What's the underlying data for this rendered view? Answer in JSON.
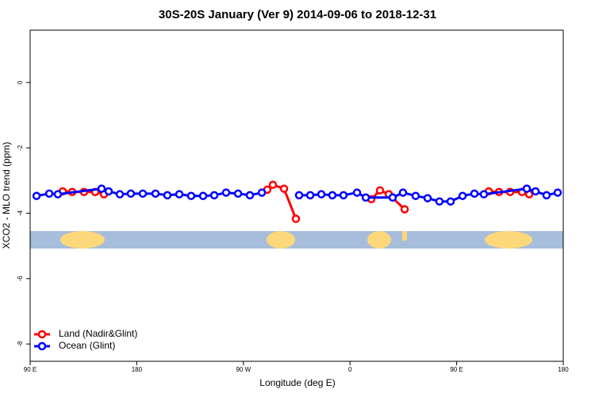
{
  "chart_data": {
    "type": "line",
    "title": "30S-20S January (Ver 9)   2014-09-06 to 2018-12-31",
    "x_label": "Longitude (deg E)",
    "y_label": "XCO2 - MLO trend (ppm)",
    "xlim": [
      90,
      540
    ],
    "ylim": [
      -8.53,
      1.6
    ],
    "xticks": [
      {
        "value": 90,
        "label": "90 E"
      },
      180,
      {
        "value": 270,
        "label": "90 W"
      },
      {
        "value": 360,
        "label": "0"
      },
      {
        "value": 450,
        "label": "90 E"
      },
      {
        "value": 540,
        "label": "180"
      }
    ],
    "yticks": [
      0,
      -2,
      -4,
      -6,
      -8
    ],
    "legend": "bottomleft",
    "series": [
      {
        "name": "Land (Nadir&Glint)",
        "color": "#ff0000",
        "x": [
          117.5,
          125.5,
          135.5,
          144.9,
          152.3,
          null,
          290.2,
          294.9,
          304.3,
          314.3,
          null,
          378.0,
          385.3,
          392.7,
          406.1,
          null,
          477.1,
          485.8,
          495.2,
          505.2,
          511.2
        ],
        "values": [
          -3.33,
          -3.35,
          -3.35,
          -3.35,
          -3.42,
          null,
          -3.28,
          -3.13,
          -3.25,
          -4.17,
          null,
          -3.57,
          -3.3,
          -3.42,
          -3.88,
          null,
          -3.33,
          -3.35,
          -3.35,
          -3.35,
          -3.42
        ]
      },
      {
        "name": "Ocean (Glint)",
        "color": "#0000ff",
        "x": [
          95.4,
          106.1,
          113.4,
          150.3,
          156.3,
          165.7,
          175.0,
          185.1,
          195.8,
          205.8,
          215.9,
          225.9,
          236.0,
          245.4,
          255.4,
          265.5,
          275.5,
          285.6,
          null,
          317.0,
          326.4,
          335.8,
          345.1,
          354.5,
          365.9,
          373.3,
          396.0,
          404.7,
          415.4,
          425.5,
          435.5,
          444.9,
          455.0,
          465.0,
          473.0,
          509.2,
          516.6,
          525.9,
          535.3
        ],
        "values": [
          -3.47,
          -3.4,
          -3.42,
          -3.25,
          -3.33,
          -3.42,
          -3.4,
          -3.4,
          -3.4,
          -3.45,
          -3.42,
          -3.47,
          -3.47,
          -3.45,
          -3.37,
          -3.4,
          -3.45,
          -3.37,
          null,
          -3.45,
          -3.45,
          -3.42,
          -3.45,
          -3.45,
          -3.37,
          -3.52,
          -3.52,
          -3.37,
          -3.47,
          -3.54,
          -3.64,
          -3.64,
          -3.47,
          -3.4,
          -3.42,
          -3.25,
          -3.33,
          -3.45,
          -3.37
        ]
      }
    ]
  }
}
